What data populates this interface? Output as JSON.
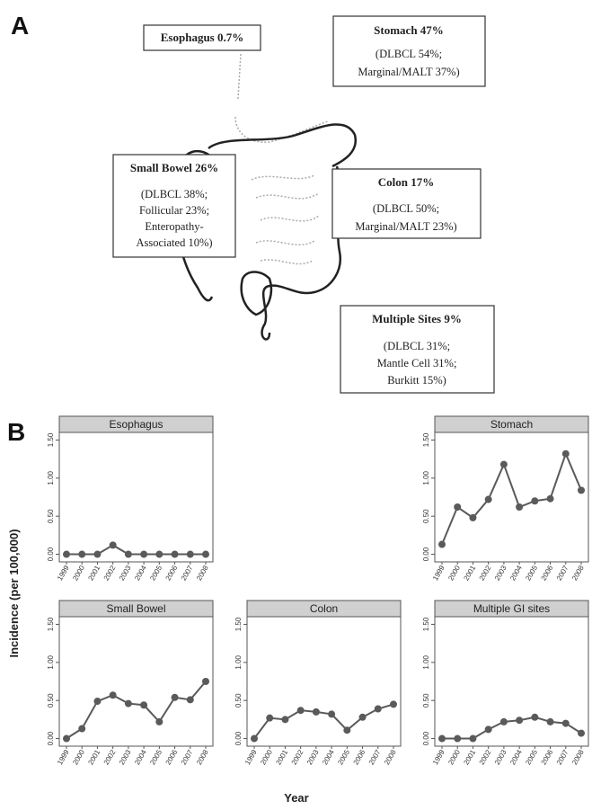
{
  "panel_labels": [
    "A",
    "B"
  ],
  "anatomy_labels": [
    {
      "title": "Esophagus 0.7%"
    },
    {
      "title": "Stomach 47%",
      "lines": [
        "(DLBCL 54%;",
        "Marginal/MALT 37%)"
      ]
    },
    {
      "title": "Small Bowel 26%",
      "lines": [
        "(DLBCL 38%;",
        "Follicular 23%;",
        "Enteropathy-",
        "Associated 10%)"
      ]
    },
    {
      "title": "Colon 17%",
      "lines": [
        "(DLBCL 50%;",
        "Marginal/MALT 23%)"
      ]
    },
    {
      "title": "Multiple Sites 9%",
      "lines": [
        "(DLBCL 31%;",
        "Mantle Cell 31%;",
        "Burkitt 15%)"
      ]
    }
  ],
  "shared_axes": {
    "y_label": "Incidence (per 100,000)",
    "x_label": "Year"
  },
  "chart_data": [
    {
      "type": "line",
      "title": "Esophagus",
      "color": "#5a5a5a",
      "categories": [
        "1999",
        "2000",
        "2001",
        "2002",
        "2003",
        "2004",
        "2005",
        "2006",
        "2007",
        "2008"
      ],
      "values": [
        0,
        0,
        0,
        0.12,
        0,
        0,
        0,
        0,
        0,
        0
      ],
      "ylim": [
        -0.1,
        1.6
      ],
      "yticks": [
        {
          "value": 0,
          "label": "0.00"
        },
        {
          "value": 0.5,
          "label": "0.50"
        },
        {
          "value": 1,
          "label": "1.00"
        },
        {
          "value": 1.5,
          "label": "1.50"
        }
      ]
    },
    {
      "type": "line",
      "title": "Stomach",
      "color": "#5a5a5a",
      "categories": [
        "1999",
        "2000",
        "2001",
        "2002",
        "2003",
        "2004",
        "2005",
        "2006",
        "2007",
        "2008"
      ],
      "values": [
        0.13,
        0.62,
        0.48,
        0.72,
        1.18,
        0.62,
        0.7,
        0.73,
        1.32,
        0.84
      ],
      "ylim": [
        -0.1,
        1.6
      ],
      "yticks": [
        {
          "value": 0,
          "label": "0.00"
        },
        {
          "value": 0.5,
          "label": "0.50"
        },
        {
          "value": 1,
          "label": "1.00"
        },
        {
          "value": 1.5,
          "label": "1.50"
        }
      ]
    },
    {
      "type": "line",
      "title": "Small Bowel",
      "color": "#5a5a5a",
      "categories": [
        "1999",
        "2000",
        "2001",
        "2002",
        "2003",
        "2004",
        "2005",
        "2006",
        "2007",
        "2008"
      ],
      "values": [
        0,
        0.13,
        0.49,
        0.57,
        0.46,
        0.44,
        0.22,
        0.54,
        0.51,
        0.75
      ],
      "ylim": [
        -0.1,
        1.6
      ],
      "yticks": [
        {
          "value": 0,
          "label": "0.00"
        },
        {
          "value": 0.5,
          "label": "0.50"
        },
        {
          "value": 1,
          "label": "1.00"
        },
        {
          "value": 1.5,
          "label": "1.50"
        }
      ]
    },
    {
      "type": "line",
      "title": "Colon",
      "color": "#5a5a5a",
      "categories": [
        "1999",
        "2000",
        "2001",
        "2002",
        "2003",
        "2004",
        "2005",
        "2006",
        "2007",
        "2008"
      ],
      "values": [
        0,
        0.27,
        0.25,
        0.37,
        0.35,
        0.32,
        0.11,
        0.28,
        0.39,
        0.45
      ],
      "ylim": [
        -0.1,
        1.6
      ],
      "yticks": [
        {
          "value": 0,
          "label": "0.00"
        },
        {
          "value": 0.5,
          "label": "0.50"
        },
        {
          "value": 1,
          "label": "1.00"
        },
        {
          "value": 1.5,
          "label": "1.50"
        }
      ]
    },
    {
      "type": "line",
      "title": "Multiple GI sites",
      "color": "#5a5a5a",
      "categories": [
        "1999",
        "2000",
        "2001",
        "2002",
        "2003",
        "2004",
        "2005",
        "2006",
        "2007",
        "2008"
      ],
      "values": [
        0,
        0,
        0,
        0.12,
        0.22,
        0.24,
        0.28,
        0.22,
        0.2,
        0.07
      ],
      "ylim": [
        -0.1,
        1.6
      ],
      "yticks": [
        {
          "value": 0,
          "label": "0.00"
        },
        {
          "value": 0.5,
          "label": "0.50"
        },
        {
          "value": 1,
          "label": "1.00"
        },
        {
          "value": 1.5,
          "label": "1.50"
        }
      ]
    }
  ]
}
